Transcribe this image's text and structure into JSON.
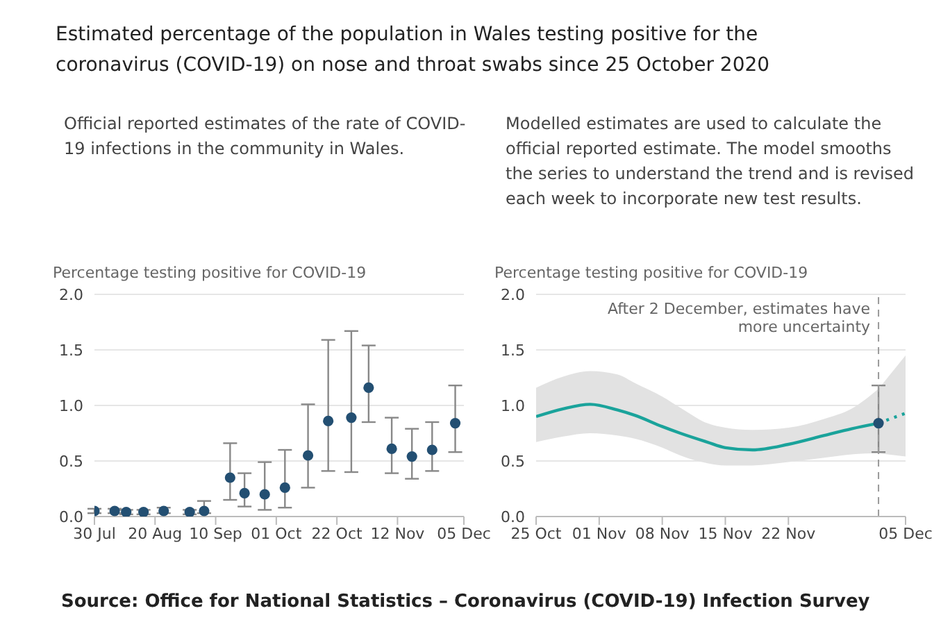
{
  "chart_data": [
    {
      "type": "scatter",
      "title": "Estimated percentage of the population in Wales testing positive for the coronavirus (COVID-19) on nose and throat swabs since 25 October 2020",
      "subtitle": "Official reported estimates of the rate of COVID-19 infections in the community in Wales.",
      "ylabel": "Percentage testing positive for COVID-19",
      "annotations": [
        "Source: Office for National Statistics – Coronavirus (COVID-19) Infection Survey"
      ],
      "x": [
        "2020-07-30",
        "2020-08-06",
        "2020-08-10",
        "2020-08-16",
        "2020-08-23",
        "2020-09-01",
        "2020-09-06",
        "2020-09-15",
        "2020-09-20",
        "2020-09-27",
        "2020-10-04",
        "2020-10-12",
        "2020-10-19",
        "2020-10-27",
        "2020-11-02",
        "2020-11-10",
        "2020-11-17",
        "2020-11-24",
        "2020-12-02"
      ],
      "series": [
        {
          "color": "#234f72",
          "values": [
            0.05,
            0.05,
            0.04,
            0.04,
            0.05,
            0.04,
            0.05,
            0.35,
            0.21,
            0.2,
            0.26,
            0.55,
            0.86,
            0.89,
            1.16,
            0.61,
            0.54,
            0.6,
            0.84
          ],
          "errors": [
            [
              0.03,
              0.07
            ],
            [
              0.03,
              0.07
            ],
            [
              0.02,
              0.06
            ],
            [
              0.02,
              0.06
            ],
            [
              0.03,
              0.08
            ],
            [
              0.02,
              0.06
            ],
            [
              0.03,
              0.14
            ],
            [
              0.15,
              0.66
            ],
            [
              0.09,
              0.39
            ],
            [
              0.06,
              0.49
            ],
            [
              0.08,
              0.6
            ],
            [
              0.26,
              1.01
            ],
            [
              0.41,
              1.59
            ],
            [
              0.4,
              1.67
            ],
            [
              0.85,
              1.54
            ],
            [
              0.39,
              0.89
            ],
            [
              0.34,
              0.79
            ],
            [
              0.41,
              0.85
            ],
            [
              0.58,
              1.18
            ]
          ]
        }
      ],
      "marker": "circle",
      "grid": "y",
      "xlim": [
        "2020-07-30",
        "2020-12-05"
      ],
      "xticks": [
        {
          "value": "2020-07-30",
          "label": "30 Jul"
        },
        {
          "value": "2020-08-20",
          "label": "20 Aug"
        },
        {
          "value": "2020-09-10",
          "label": "10 Sep"
        },
        {
          "value": "2020-10-01",
          "label": "01 Oct"
        },
        {
          "value": "2020-10-22",
          "label": "22 Oct"
        },
        {
          "value": "2020-11-12",
          "label": "12 Nov"
        },
        {
          "value": "2020-12-05",
          "label": "05 Dec"
        }
      ],
      "ylim": [
        0,
        2
      ],
      "yticks": [
        {
          "value": 0,
          "label": "0.0"
        },
        {
          "value": 0.5,
          "label": "0.5"
        },
        {
          "value": 1,
          "label": "1.0"
        },
        {
          "value": 1.5,
          "label": "1.5"
        },
        {
          "value": 2,
          "label": "2.0"
        }
      ]
    },
    {
      "type": "line",
      "subtitle": "Modelled estimates are used to calculate the official reported estimate. The model smooths the series to understand the trend and is revised each week to incorporate new test results.",
      "ylabel": "Percentage testing positive for COVID-19",
      "series": [
        {
          "type": "line",
          "color": "#1aa39b",
          "line_style": "solid",
          "marker": "none",
          "x": [
            "2020-10-25",
            "2020-10-28",
            "2020-10-31",
            "2020-11-03",
            "2020-11-05",
            "2020-11-08",
            "2020-11-10",
            "2020-11-13",
            "2020-11-15",
            "2020-11-18",
            "2020-11-22",
            "2020-11-26",
            "2020-11-29",
            "2020-12-02"
          ],
          "values": [
            0.9,
            0.97,
            1.01,
            0.96,
            0.91,
            0.81,
            0.75,
            0.67,
            0.62,
            0.6,
            0.65,
            0.73,
            0.79,
            0.84
          ],
          "lower": [
            0.67,
            0.72,
            0.75,
            0.73,
            0.7,
            0.62,
            0.55,
            0.48,
            0.46,
            0.46,
            0.49,
            0.53,
            0.56,
            0.57
          ],
          "upper": [
            1.16,
            1.26,
            1.31,
            1.28,
            1.2,
            1.08,
            0.98,
            0.84,
            0.8,
            0.78,
            0.8,
            0.88,
            0.97,
            1.15
          ]
        },
        {
          "type": "line",
          "color": "#1aa39b",
          "line_style": "dotted",
          "marker": "none",
          "x": [
            "2020-12-02",
            "2020-12-05"
          ],
          "values": [
            0.84,
            0.93
          ],
          "lower": [
            0.57,
            0.54
          ],
          "upper": [
            1.15,
            1.45
          ]
        },
        {
          "type": "scatter",
          "color": "#234f72",
          "marker": "circle",
          "x": [
            "2020-12-02"
          ],
          "values": [
            0.84
          ],
          "errors": [
            [
              0.58,
              1.18
            ]
          ]
        }
      ],
      "grid": "y",
      "ref_lines": [
        {
          "axis": "x",
          "value": "2020-12-02",
          "label": "After 2 December, estimates have more uncertainty",
          "color": "#999999",
          "line_style": "dashed"
        }
      ],
      "xlim": [
        "2020-10-25",
        "2020-12-05"
      ],
      "xticks": [
        {
          "value": "2020-10-25",
          "label": "25 Oct"
        },
        {
          "value": "2020-11-01",
          "label": "01 Nov"
        },
        {
          "value": "2020-11-08",
          "label": "08 Nov"
        },
        {
          "value": "2020-11-15",
          "label": "15 Nov"
        },
        {
          "value": "2020-11-22",
          "label": "22 Nov"
        },
        {
          "value": "2020-12-05",
          "label": "05 Dec"
        }
      ],
      "ylim": [
        0,
        2
      ],
      "yticks": [
        {
          "value": 0,
          "label": "0.0"
        },
        {
          "value": 0.5,
          "label": "0.5"
        },
        {
          "value": 1,
          "label": "1.0"
        },
        {
          "value": 1.5,
          "label": "1.5"
        },
        {
          "value": 2,
          "label": "2.0"
        }
      ]
    }
  ]
}
